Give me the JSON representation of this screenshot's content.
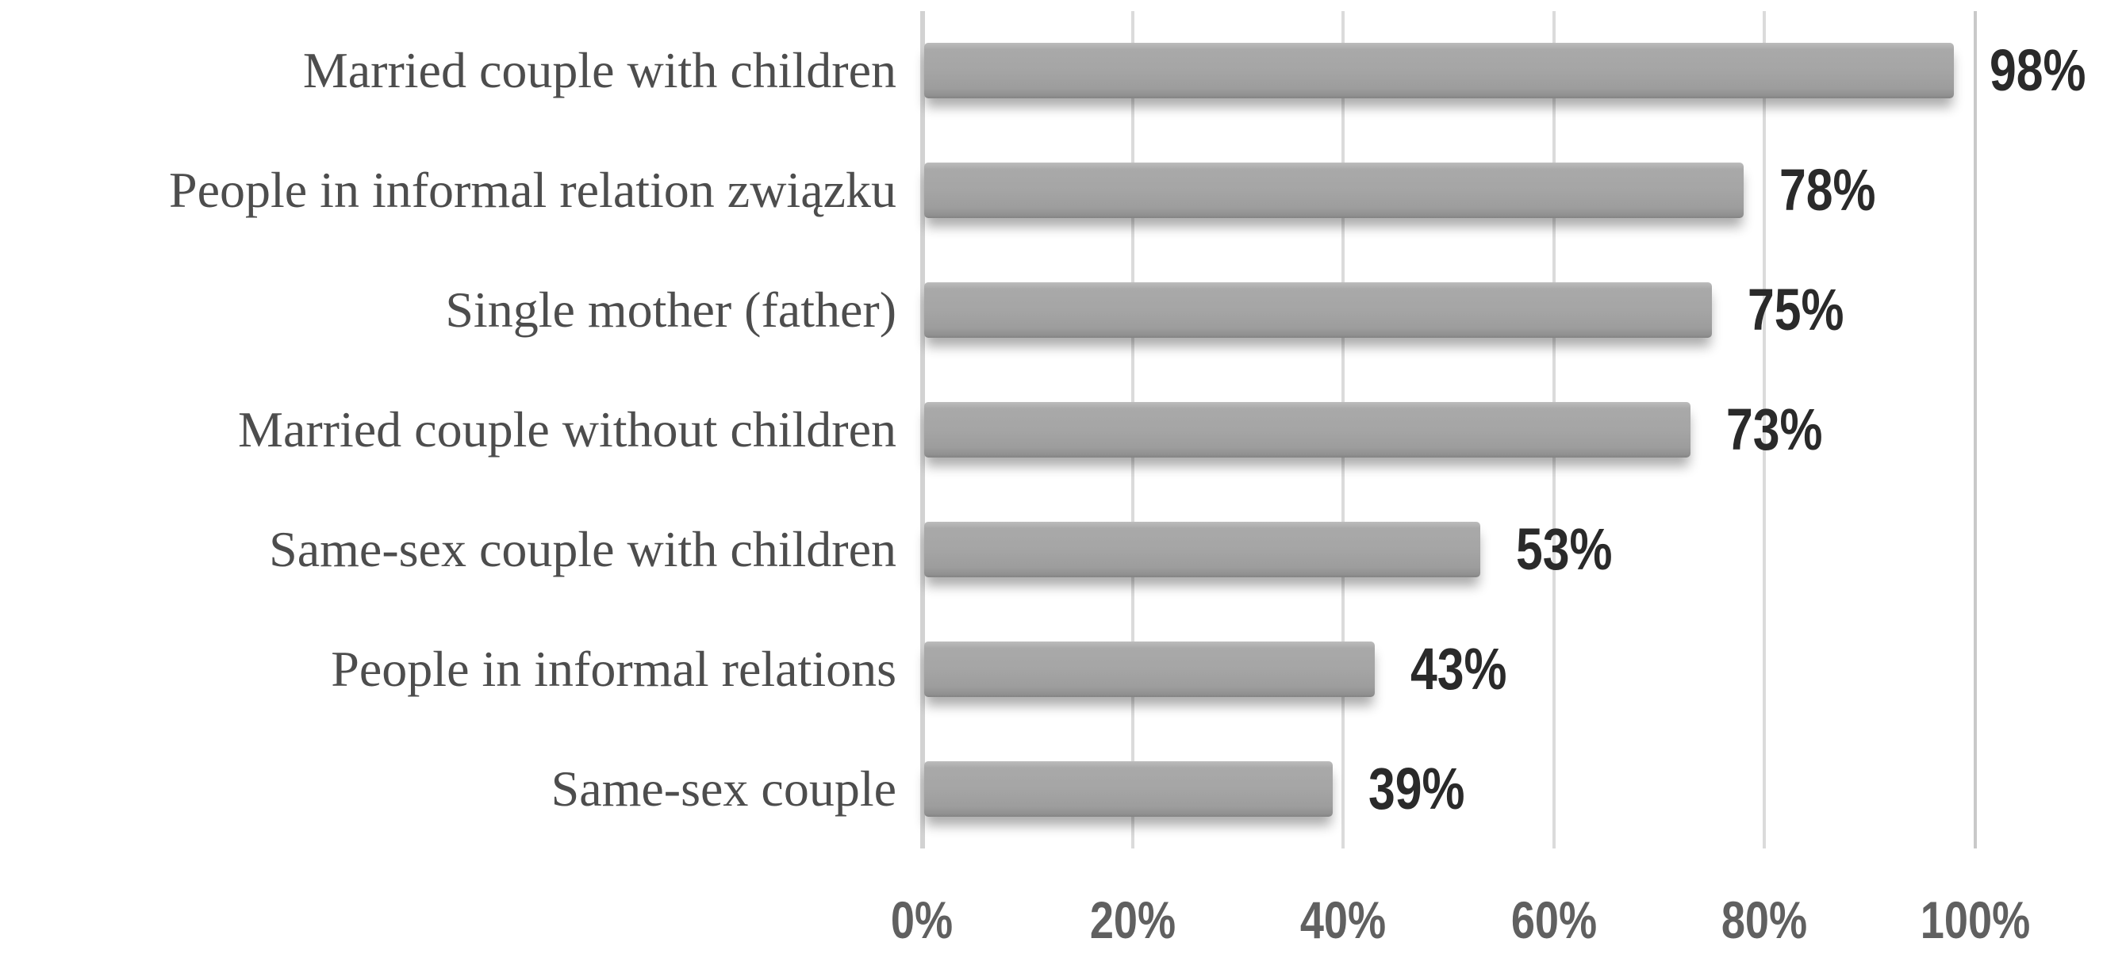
{
  "chart_data": {
    "type": "bar",
    "orientation": "horizontal",
    "title": "",
    "xlabel": "",
    "ylabel": "",
    "categories": [
      "Married couple with children",
      "People in informal relation związku",
      "Single mother (father)",
      "Married couple without children",
      "Same-sex couple with children",
      "People in informal relations",
      "Same-sex couple"
    ],
    "values": [
      98,
      78,
      75,
      73,
      53,
      43,
      39
    ],
    "value_labels": [
      "98%",
      "78%",
      "75%",
      "73%",
      "53%",
      "43%",
      "39%"
    ],
    "x_ticks": [
      "0%",
      "20%",
      "40%",
      "60%",
      "80%",
      "100%"
    ],
    "x_tick_values": [
      0,
      20,
      40,
      60,
      80,
      100
    ],
    "xlim": [
      0,
      100
    ],
    "grid": "vertical-only",
    "legend": false,
    "colors": {
      "bar_fill": "#a5a5a5",
      "bar_edge_dark": "#838383",
      "gridline": "#dbdbdb",
      "category_text": "#4d4d4d",
      "value_text": "#2a2a2a",
      "tick_text": "#606060",
      "background": "#ffffff"
    }
  }
}
